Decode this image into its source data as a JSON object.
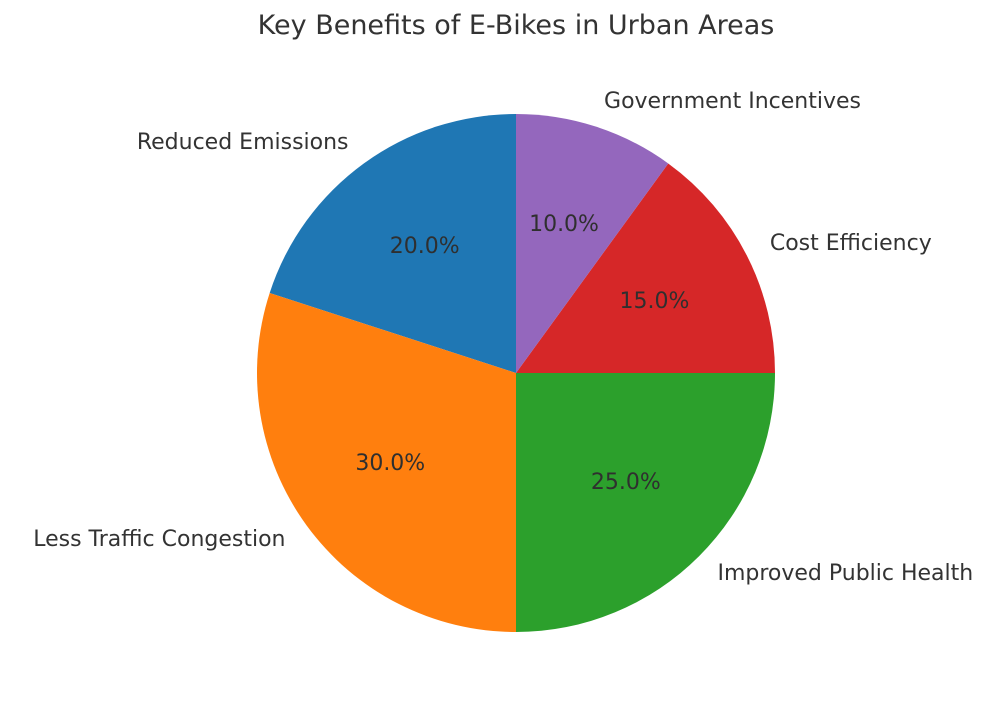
{
  "page": {
    "background": "#ffffff"
  },
  "chart_data": {
    "type": "pie",
    "title": "Key Benefits of E-Bikes in Urban Areas",
    "slices": [
      {
        "label": "Reduced Emissions",
        "value": 20,
        "percent_label": "20.0%",
        "color": "#1f77b4"
      },
      {
        "label": "Less Traffic Congestion",
        "value": 30,
        "percent_label": "30.0%",
        "color": "#ff7f0e"
      },
      {
        "label": "Improved Public Health",
        "value": 25,
        "percent_label": "25.0%",
        "color": "#2ca02c"
      },
      {
        "label": "Cost Efficiency",
        "value": 15,
        "percent_label": "15.0%",
        "color": "#d62728"
      },
      {
        "label": "Government Incentives",
        "value": 10,
        "percent_label": "10.0%",
        "color": "#9467bd"
      }
    ],
    "values": [
      20,
      30,
      25,
      15,
      10
    ],
    "categories": [
      "Reduced Emissions",
      "Less Traffic Congestion",
      "Improved Public Health",
      "Cost Efficiency",
      "Government Incentives"
    ],
    "start_angle": 90,
    "direction": "counterclockwise",
    "legend": "none",
    "text_color": "#333333"
  }
}
